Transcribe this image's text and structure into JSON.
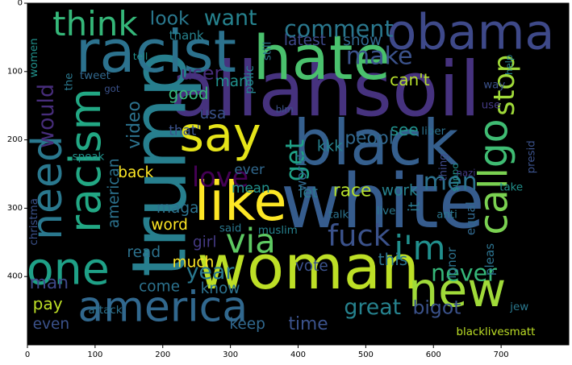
{
  "chart_data": {
    "type": "wordcloud",
    "xlim": [
      0,
      800
    ],
    "ylim": [
      500,
      0
    ],
    "xticks": [
      0,
      100,
      200,
      300,
      400,
      500,
      600,
      700
    ],
    "yticks": [
      0,
      100,
      200,
      300,
      400
    ],
    "background": "#000000",
    "words": [
      {
        "text": "allahsoil",
        "x": 440,
        "y": 127,
        "size": 112,
        "color": "#46327e"
      },
      {
        "text": "white",
        "x": 525,
        "y": 290,
        "size": 110,
        "color": "#365c8d"
      },
      {
        "text": "woman",
        "x": 415,
        "y": 387,
        "size": 90,
        "color": "#bddf26"
      },
      {
        "text": "black",
        "x": 515,
        "y": 205,
        "size": 92,
        "color": "#355f8d"
      },
      {
        "text": "trump",
        "x": 195,
        "y": 235,
        "size": 110,
        "color": "#277f8e",
        "rotate": -90
      },
      {
        "text": "racist",
        "x": 190,
        "y": 72,
        "size": 86,
        "color": "#2c728e"
      },
      {
        "text": "hate",
        "x": 435,
        "y": 80,
        "size": 90,
        "color": "#4ac16d"
      },
      {
        "text": "obama",
        "x": 655,
        "y": 43,
        "size": 72,
        "color": "#3e4989"
      },
      {
        "text": "say",
        "x": 285,
        "y": 192,
        "size": 70,
        "color": "#e5e419"
      },
      {
        "text": "like",
        "x": 315,
        "y": 290,
        "size": 80,
        "color": "#fde725"
      },
      {
        "text": "america",
        "x": 200,
        "y": 445,
        "size": 62,
        "color": "#31688e"
      },
      {
        "text": "new",
        "x": 635,
        "y": 420,
        "size": 70,
        "color": "#a0da39"
      },
      {
        "text": "racism",
        "x": 85,
        "y": 230,
        "size": 64,
        "color": "#22a884",
        "rotate": -90
      },
      {
        "text": "need",
        "x": 30,
        "y": 270,
        "size": 62,
        "color": "#2a788e",
        "rotate": -90
      },
      {
        "text": "one",
        "x": 60,
        "y": 390,
        "size": 66,
        "color": "#1fa187"
      },
      {
        "text": "call",
        "x": 690,
        "y": 290,
        "size": 58,
        "color": "#7ad151",
        "rotate": -90
      },
      {
        "text": "go",
        "x": 690,
        "y": 205,
        "size": 58,
        "color": "#3fbc73",
        "rotate": -90
      },
      {
        "text": "think",
        "x": 100,
        "y": 30,
        "size": 50,
        "color": "#35b779"
      },
      {
        "text": "fuck",
        "x": 490,
        "y": 340,
        "size": 44,
        "color": "#3b528b"
      },
      {
        "text": "via",
        "x": 330,
        "y": 348,
        "size": 50,
        "color": "#5ec962"
      },
      {
        "text": "i'm",
        "x": 580,
        "y": 358,
        "size": 50,
        "color": "#218f8d"
      },
      {
        "text": "love",
        "x": 285,
        "y": 255,
        "size": 40,
        "color": "#440154"
      },
      {
        "text": "comment",
        "x": 460,
        "y": 38,
        "size": 34,
        "color": "#2a788e"
      },
      {
        "text": "want",
        "x": 300,
        "y": 22,
        "size": 32,
        "color": "#26828e"
      },
      {
        "text": "make",
        "x": 520,
        "y": 78,
        "size": 36,
        "color": "#3b528b"
      },
      {
        "text": "stop",
        "x": 705,
        "y": 120,
        "size": 42,
        "color": "#a0da39",
        "rotate": -90
      },
      {
        "text": "would",
        "x": 28,
        "y": 165,
        "size": 32,
        "color": "#472d7b",
        "rotate": -90
      },
      {
        "text": "get",
        "x": 395,
        "y": 230,
        "size": 38,
        "color": "#1fa187",
        "rotate": -90
      },
      {
        "text": "men",
        "x": 625,
        "y": 262,
        "size": 36,
        "color": "#2c728e"
      },
      {
        "text": "never",
        "x": 645,
        "y": 395,
        "size": 34,
        "color": "#35b779"
      },
      {
        "text": "year",
        "x": 270,
        "y": 393,
        "size": 32,
        "color": "#2a788e"
      },
      {
        "text": "great",
        "x": 510,
        "y": 445,
        "size": 32,
        "color": "#26828e"
      },
      {
        "text": "bigot",
        "x": 605,
        "y": 445,
        "size": 28,
        "color": "#3b528b"
      },
      {
        "text": "video",
        "x": 158,
        "y": 178,
        "size": 26,
        "color": "#2c728e",
        "rotate": -90
      },
      {
        "text": "american",
        "x": 128,
        "y": 278,
        "size": 22,
        "color": "#2c728e",
        "rotate": -90
      },
      {
        "text": "look",
        "x": 210,
        "y": 22,
        "size": 28,
        "color": "#2a788e"
      },
      {
        "text": "user",
        "x": 257,
        "y": 102,
        "size": 28,
        "color": "#472d7b"
      },
      {
        "text": "can't",
        "x": 565,
        "y": 112,
        "size": 24,
        "color": "#b5de2b"
      },
      {
        "text": "peopl",
        "x": 505,
        "y": 198,
        "size": 26,
        "color": "#31688e"
      },
      {
        "text": "good",
        "x": 238,
        "y": 132,
        "size": 24,
        "color": "#35b779"
      },
      {
        "text": "usa",
        "x": 274,
        "y": 162,
        "size": 22,
        "color": "#3b528b"
      },
      {
        "text": "mani",
        "x": 305,
        "y": 115,
        "size": 22,
        "color": "#21918c"
      },
      {
        "text": "that'",
        "x": 232,
        "y": 186,
        "size": 20,
        "color": "#3b528b"
      },
      {
        "text": "latest",
        "x": 410,
        "y": 55,
        "size": 22,
        "color": "#3e4989"
      },
      {
        "text": "show",
        "x": 495,
        "y": 55,
        "size": 22,
        "color": "#31688e"
      },
      {
        "text": "thank",
        "x": 235,
        "y": 47,
        "size": 18,
        "color": "#26828e"
      },
      {
        "text": "see",
        "x": 557,
        "y": 185,
        "size": 24,
        "color": "#21918c"
      },
      {
        "text": "kkk",
        "x": 447,
        "y": 210,
        "size": 22,
        "color": "#26828e"
      },
      {
        "text": "world",
        "x": 405,
        "y": 248,
        "size": 20,
        "color": "#31688e",
        "rotate": -90
      },
      {
        "text": "race",
        "x": 480,
        "y": 275,
        "size": 26,
        "color": "#b5de2b"
      },
      {
        "text": "let",
        "x": 415,
        "y": 278,
        "size": 22,
        "color": "#2a788e"
      },
      {
        "text": "work",
        "x": 550,
        "y": 275,
        "size": 22,
        "color": "#26828e"
      },
      {
        "text": "it",
        "x": 572,
        "y": 298,
        "size": 22,
        "color": "#2a788e",
        "rotate": -90
      },
      {
        "text": "back",
        "x": 160,
        "y": 248,
        "size": 22,
        "color": "#fde725"
      },
      {
        "text": "ever",
        "x": 328,
        "y": 243,
        "size": 20,
        "color": "#31688e"
      },
      {
        "text": "mean",
        "x": 330,
        "y": 270,
        "size": 20,
        "color": "#21918c"
      },
      {
        "text": "maga",
        "x": 222,
        "y": 300,
        "size": 22,
        "color": "#2c728e"
      },
      {
        "text": "word",
        "x": 210,
        "y": 325,
        "size": 22,
        "color": "#fde725"
      },
      {
        "text": "girl",
        "x": 262,
        "y": 350,
        "size": 22,
        "color": "#443983"
      },
      {
        "text": "read",
        "x": 172,
        "y": 365,
        "size": 22,
        "color": "#2c728e"
      },
      {
        "text": "much",
        "x": 245,
        "y": 380,
        "size": 22,
        "color": "#fde725"
      },
      {
        "text": "this",
        "x": 540,
        "y": 375,
        "size": 24,
        "color": "#2c728e"
      },
      {
        "text": "vote",
        "x": 420,
        "y": 385,
        "size": 22,
        "color": "#3b528b"
      },
      {
        "text": "man",
        "x": 32,
        "y": 410,
        "size": 26,
        "color": "#3e4989"
      },
      {
        "text": "pay",
        "x": 30,
        "y": 440,
        "size": 24,
        "color": "#bddf26"
      },
      {
        "text": "even",
        "x": 35,
        "y": 470,
        "size": 22,
        "color": "#3b528b"
      },
      {
        "text": "come",
        "x": 195,
        "y": 415,
        "size": 22,
        "color": "#2c728e"
      },
      {
        "text": "know",
        "x": 285,
        "y": 418,
        "size": 22,
        "color": "#2c728e"
      },
      {
        "text": "keep",
        "x": 325,
        "y": 470,
        "size": 22,
        "color": "#31688e"
      },
      {
        "text": "time",
        "x": 415,
        "y": 470,
        "size": 26,
        "color": "#3b528b"
      },
      {
        "text": "women",
        "x": 10,
        "y": 80,
        "size": 16,
        "color": "#21918c",
        "rotate": -90
      },
      {
        "text": "the",
        "x": 62,
        "y": 115,
        "size": 16,
        "color": "#2a788e",
        "rotate": -90
      },
      {
        "text": "tweet",
        "x": 100,
        "y": 107,
        "size": 16,
        "color": "#31688e"
      },
      {
        "text": "tell",
        "x": 167,
        "y": 78,
        "size": 14,
        "color": "#21918c"
      },
      {
        "text": "got",
        "x": 125,
        "y": 125,
        "size": 14,
        "color": "#3b528b"
      },
      {
        "text": "speak",
        "x": 90,
        "y": 225,
        "size": 16,
        "color": "#21918c"
      },
      {
        "text": "christma",
        "x": 10,
        "y": 320,
        "size": 16,
        "color": "#3b528b",
        "rotate": -90
      },
      {
        "text": "polic",
        "x": 328,
        "y": 112,
        "size": 18,
        "color": "#26828e",
        "rotate": -90
      },
      {
        "text": "still",
        "x": 355,
        "y": 70,
        "size": 16,
        "color": "#2c728e",
        "rotate": -90
      },
      {
        "text": "blm",
        "x": 380,
        "y": 155,
        "size": 14,
        "color": "#3b528b"
      },
      {
        "text": "liber",
        "x": 600,
        "y": 188,
        "size": 16,
        "color": "#2c728e"
      },
      {
        "text": "use",
        "x": 685,
        "y": 150,
        "size": 16,
        "color": "#443983"
      },
      {
        "text": "way",
        "x": 690,
        "y": 120,
        "size": 16,
        "color": "#3b528b"
      },
      {
        "text": "help",
        "x": 712,
        "y": 90,
        "size": 14,
        "color": "#26828e",
        "rotate": -90
      },
      {
        "text": "thing",
        "x": 615,
        "y": 240,
        "size": 16,
        "color": "#3e4989",
        "rotate": -90
      },
      {
        "text": "suppo",
        "x": 632,
        "y": 255,
        "size": 14,
        "color": "#21918c",
        "rotate": -90
      },
      {
        "text": "equal",
        "x": 655,
        "y": 315,
        "size": 18,
        "color": "#31688e",
        "rotate": -90
      },
      {
        "text": "presid",
        "x": 745,
        "y": 225,
        "size": 16,
        "color": "#3b528b",
        "rotate": -90
      },
      {
        "text": "nazi",
        "x": 648,
        "y": 248,
        "size": 14,
        "color": "#443983"
      },
      {
        "text": "take",
        "x": 715,
        "y": 270,
        "size": 16,
        "color": "#21918c"
      },
      {
        "text": "pleas",
        "x": 683,
        "y": 375,
        "size": 18,
        "color": "#2c728e",
        "rotate": -90
      },
      {
        "text": "ignor",
        "x": 627,
        "y": 380,
        "size": 18,
        "color": "#2c728e",
        "rotate": -90
      },
      {
        "text": "live",
        "x": 530,
        "y": 305,
        "size": 16,
        "color": "#2a788e"
      },
      {
        "text": "anti",
        "x": 620,
        "y": 310,
        "size": 16,
        "color": "#2a788e"
      },
      {
        "text": "talk",
        "x": 460,
        "y": 310,
        "size": 16,
        "color": "#2c728e"
      },
      {
        "text": "said",
        "x": 300,
        "y": 330,
        "size": 16,
        "color": "#2a788e"
      },
      {
        "text": "muslim",
        "x": 370,
        "y": 333,
        "size": 16,
        "color": "#26828e"
      },
      {
        "text": "attack",
        "x": 115,
        "y": 450,
        "size": 16,
        "color": "#2c728e"
      },
      {
        "text": "jew",
        "x": 727,
        "y": 445,
        "size": 16,
        "color": "#2a788e"
      },
      {
        "text": "blacklivesmatt",
        "x": 692,
        "y": 482,
        "size": 16,
        "color": "#bddf26"
      }
    ]
  }
}
